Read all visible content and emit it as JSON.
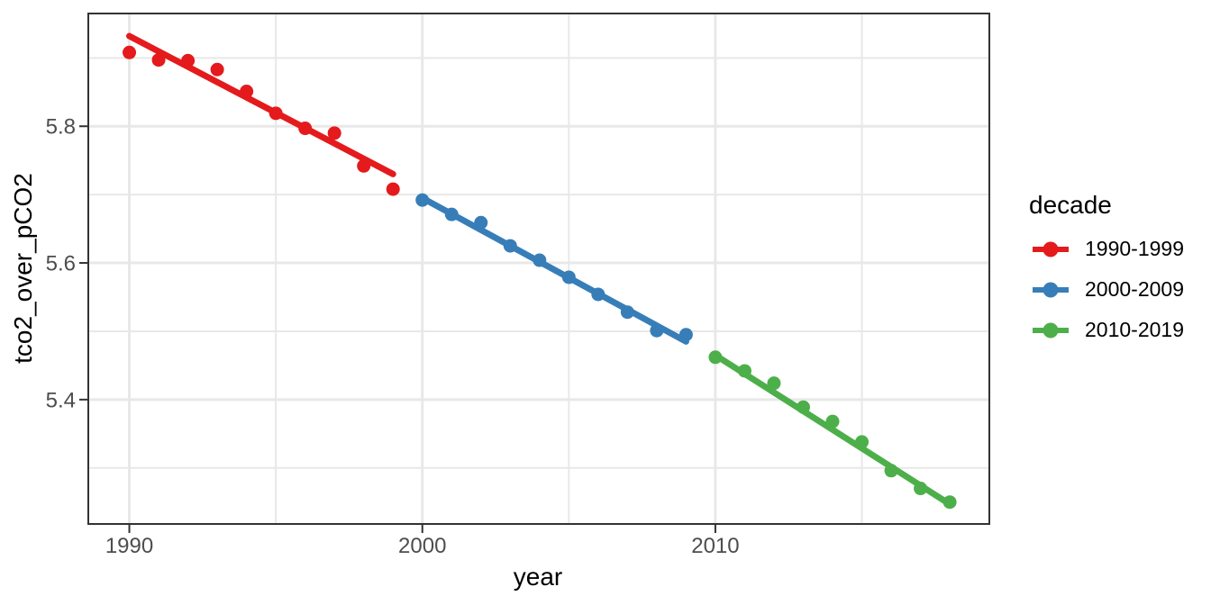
{
  "chart_data": {
    "type": "scatter",
    "title": "",
    "xlabel": "year",
    "ylabel": "tco2_over_pCO2",
    "legend_title": "decade",
    "legend_position": "right",
    "grid": true,
    "xlim": [
      1988.6,
      2019.35
    ],
    "ylim": [
      5.218,
      5.965
    ],
    "x_axis": {
      "major_ticks": [
        1990,
        2000,
        2010
      ],
      "minor_ticks": [
        1995,
        2005,
        2015
      ],
      "tick_labels": [
        "1990",
        "2000",
        "2010"
      ]
    },
    "y_axis": {
      "major_ticks": [
        5.4,
        5.6,
        5.8
      ],
      "minor_ticks": [
        5.3,
        5.5,
        5.7,
        5.9
      ],
      "tick_labels": [
        "5.4",
        "5.6",
        "5.8"
      ]
    },
    "series": [
      {
        "name": "1990-1999",
        "color": "#E41A1C",
        "x": [
          1990,
          1991,
          1992,
          1993,
          1994,
          1995,
          1996,
          1997,
          1998,
          1999
        ],
        "y": [
          5.908,
          5.897,
          5.896,
          5.883,
          5.851,
          5.819,
          5.797,
          5.79,
          5.742,
          5.708
        ],
        "trend": {
          "x1": 1990,
          "y1": 5.932,
          "x2": 1999,
          "y2": 5.73
        }
      },
      {
        "name": "2000-2009",
        "color": "#377EB8",
        "x": [
          2000,
          2001,
          2002,
          2003,
          2004,
          2005,
          2006,
          2007,
          2008,
          2009
        ],
        "y": [
          5.692,
          5.671,
          5.659,
          5.625,
          5.604,
          5.579,
          5.554,
          5.528,
          5.501,
          5.495
        ],
        "trend": {
          "x1": 2000,
          "y1": 5.695,
          "x2": 2009,
          "y2": 5.485
        }
      },
      {
        "name": "2010-2019",
        "color": "#4DAF4A",
        "x": [
          2010,
          2011,
          2012,
          2013,
          2014,
          2015,
          2016,
          2017,
          2018
        ],
        "y": [
          5.462,
          5.442,
          5.424,
          5.389,
          5.368,
          5.338,
          5.296,
          5.27,
          5.25
        ],
        "trend": {
          "x1": 2010,
          "y1": 5.465,
          "x2": 2018,
          "y2": 5.247
        }
      }
    ]
  },
  "theme": {
    "background": "#FFFFFF",
    "grid_color": "#E8E8E8",
    "panel_border_color": "#333333",
    "tick_mark_color": "#333333",
    "tick_label_color": "#4D4D4D",
    "title_color": "#000000"
  }
}
